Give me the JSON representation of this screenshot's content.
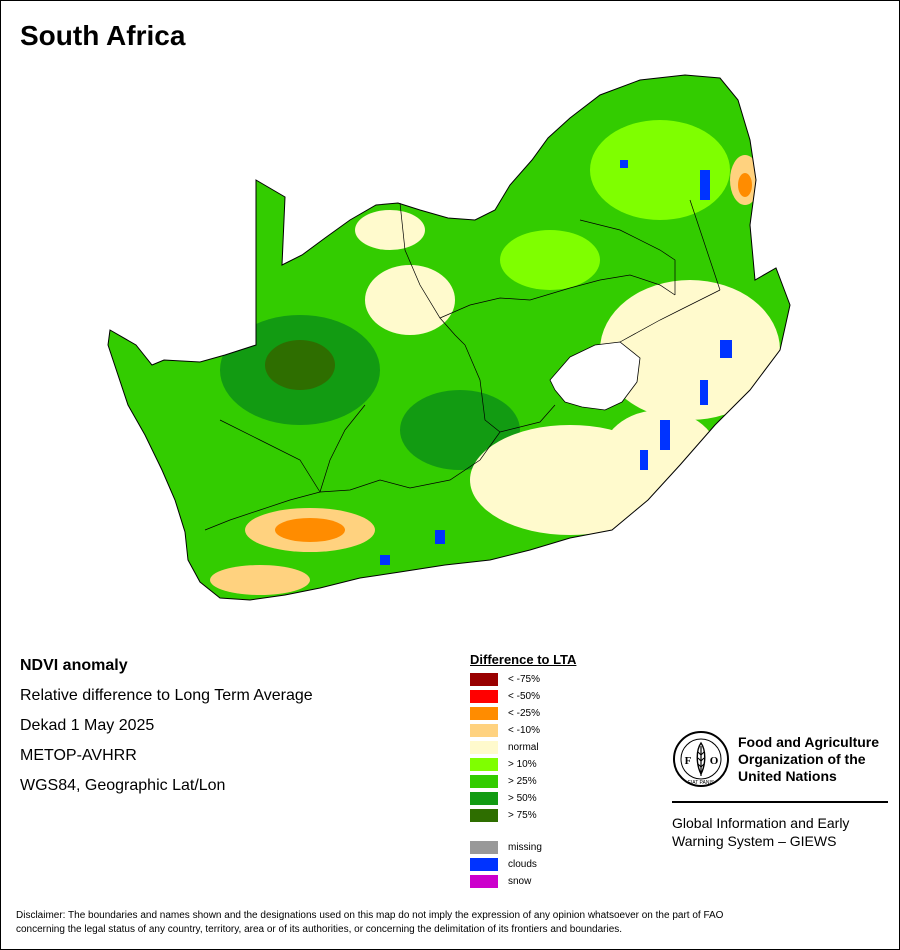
{
  "title": "South Africa",
  "info": {
    "line1": "NDVI anomaly",
    "line2": "Relative difference to Long Term Average",
    "line3": "Dekad 1 May 2025",
    "line4": "METOP-AVHRR",
    "line5": "WGS84, Geographic Lat/Lon"
  },
  "legend": {
    "title": "Difference to LTA",
    "items": [
      {
        "label": "< -75%",
        "color": "#990000"
      },
      {
        "label": "< -50%",
        "color": "#ff0000"
      },
      {
        "label": "< -25%",
        "color": "#ff8c00"
      },
      {
        "label": "< -10%",
        "color": "#ffd27f"
      },
      {
        "label": "normal",
        "color": "#fffacd"
      },
      {
        "label": "> 10%",
        "color": "#7fff00"
      },
      {
        "label": "> 25%",
        "color": "#33cc00"
      },
      {
        "label": "> 50%",
        "color": "#129b12"
      },
      {
        "label": "> 75%",
        "color": "#2e6e00"
      }
    ],
    "extra": [
      {
        "label": "missing",
        "color": "#999999"
      },
      {
        "label": "clouds",
        "color": "#0033ff"
      },
      {
        "label": "snow",
        "color": "#cc00cc"
      }
    ]
  },
  "fao": {
    "logo_text": "FAO",
    "motto": "FIAT PANIS",
    "name_line1": "Food and Agriculture",
    "name_line2": "Organization of the",
    "name_line3": "United Nations",
    "giews_line1": "Global Information and Early",
    "giews_line2": "Warning System – GIEWS"
  },
  "disclaimer_line1": "Disclaimer: The boundaries and names shown and the designations used on this map do not imply the expression of any opinion whatsoever on the part of FAO",
  "disclaimer_line2": "concerning the legal status of any country, territory, area or of its authorities, or concerning the delimitation of its frontiers and boundaries."
}
